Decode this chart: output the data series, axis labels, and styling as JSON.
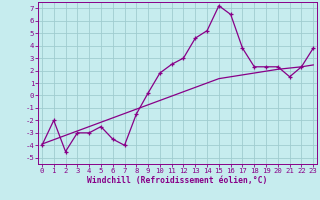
{
  "xlabel": "Windchill (Refroidissement éolien,°C)",
  "background_color": "#c6ecee",
  "grid_color": "#a0ccd0",
  "line_color": "#880088",
  "x_hours": [
    0,
    1,
    2,
    3,
    4,
    5,
    6,
    7,
    8,
    9,
    10,
    11,
    12,
    13,
    14,
    15,
    16,
    17,
    18,
    19,
    20,
    21,
    22,
    23
  ],
  "y_temp": [
    -4.0,
    -2.0,
    -4.5,
    -3.0,
    -3.0,
    -2.5,
    -3.5,
    -4.0,
    -1.5,
    0.2,
    1.8,
    2.5,
    3.0,
    4.6,
    5.2,
    7.2,
    6.5,
    3.8,
    2.3,
    2.3,
    2.3,
    1.5,
    2.3,
    3.8
  ],
  "y_trend": [
    -3.9,
    -3.55,
    -3.2,
    -2.85,
    -2.5,
    -2.15,
    -1.8,
    -1.45,
    -1.1,
    -0.75,
    -0.4,
    -0.05,
    0.3,
    0.65,
    1.0,
    1.35,
    1.5,
    1.65,
    1.8,
    1.95,
    2.1,
    2.2,
    2.3,
    2.45
  ],
  "ylim": [
    -5.5,
    7.5
  ],
  "yticks": [
    -5,
    -4,
    -3,
    -2,
    -1,
    0,
    1,
    2,
    3,
    4,
    5,
    6,
    7
  ],
  "xlim": [
    -0.3,
    23.3
  ],
  "xticks": [
    0,
    1,
    2,
    3,
    4,
    5,
    6,
    7,
    8,
    9,
    10,
    11,
    12,
    13,
    14,
    15,
    16,
    17,
    18,
    19,
    20,
    21,
    22,
    23
  ]
}
